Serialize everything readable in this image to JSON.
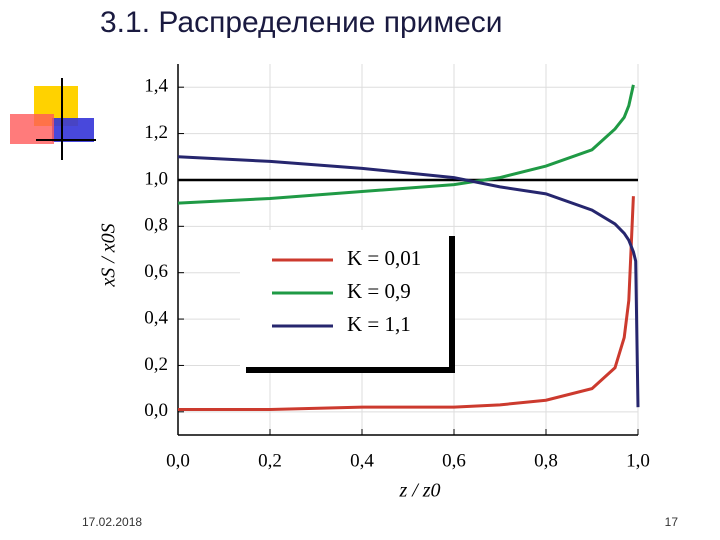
{
  "slide": {
    "title": "3.1. Распределение примеси",
    "date": "17.02.2018",
    "page": "17"
  },
  "chart_data": {
    "type": "line",
    "xlabel": "z / z0",
    "ylabel": "xS / x0S",
    "x": [
      0,
      0.2,
      0.4,
      0.6,
      0.7,
      0.8,
      0.9,
      0.95,
      0.97,
      0.98,
      0.99,
      0.995,
      1.0
    ],
    "series": [
      {
        "name": "K = 0,01",
        "color": "#cc3a2e",
        "values": [
          0.01,
          0.01,
          0.02,
          0.02,
          0.03,
          0.05,
          0.1,
          0.19,
          0.32,
          0.48,
          0.93,
          null,
          null
        ]
      },
      {
        "name": "K = 0,9",
        "color": "#1f9a45",
        "values": [
          0.9,
          0.92,
          0.95,
          0.98,
          1.01,
          1.06,
          1.13,
          1.22,
          1.27,
          1.32,
          1.41,
          null,
          null
        ]
      },
      {
        "name": "K = 1,1",
        "color": "#26266e",
        "values": [
          1.1,
          1.08,
          1.05,
          1.01,
          0.97,
          0.94,
          0.87,
          0.81,
          0.77,
          0.74,
          0.69,
          0.65,
          0.02
        ]
      }
    ],
    "reference_line": 1,
    "xlim": [
      0,
      1
    ],
    "ylim": [
      -0.1,
      1.5
    ],
    "xticks": [
      {
        "value": 0,
        "label": "0,0"
      },
      {
        "value": 0.2,
        "label": "0,2"
      },
      {
        "value": 0.4,
        "label": "0,4"
      },
      {
        "value": 0.6,
        "label": "0,6"
      },
      {
        "value": 0.8,
        "label": "0,8"
      },
      {
        "value": 1,
        "label": "1,0"
      }
    ],
    "yticks": [
      {
        "value": 0,
        "label": "0,0"
      },
      {
        "value": 0.2,
        "label": "0,2"
      },
      {
        "value": 0.4,
        "label": "0,4"
      },
      {
        "value": 0.6,
        "label": "0,6"
      },
      {
        "value": 0.8,
        "label": "0,8"
      },
      {
        "value": 1,
        "label": "1,0"
      },
      {
        "value": 1.2,
        "label": "1,2"
      },
      {
        "value": 1.4,
        "label": "1,4"
      }
    ],
    "grid": true
  }
}
